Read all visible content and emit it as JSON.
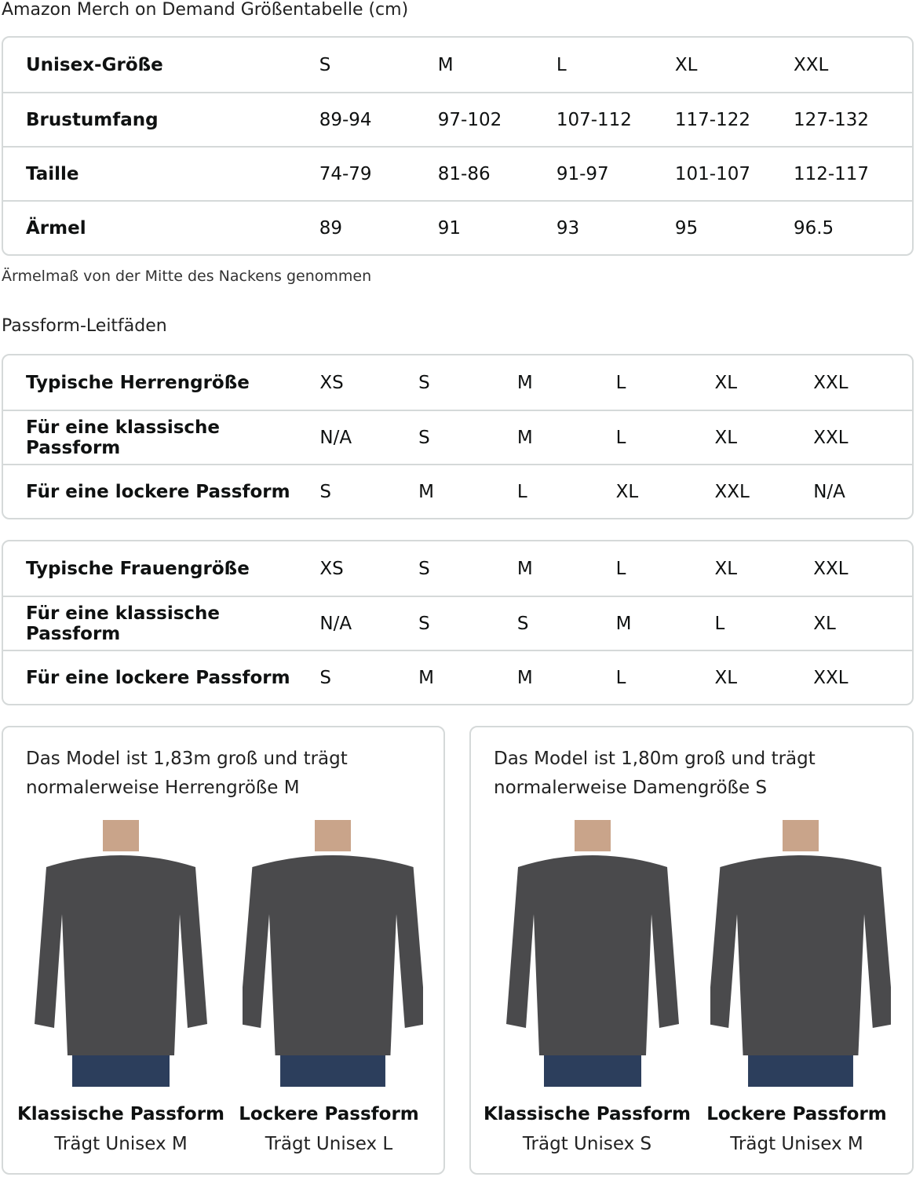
{
  "title": "Amazon Merch on Demand Größentabelle (cm)",
  "unisex": {
    "rows": [
      {
        "label": "Unisex-Größe",
        "values": [
          "S",
          "M",
          "L",
          "XL",
          "XXL"
        ]
      },
      {
        "label": "Brustumfang",
        "values": [
          "89-94",
          "97-102",
          "107-112",
          "117-122",
          "127-132"
        ]
      },
      {
        "label": "Taille",
        "values": [
          "74-79",
          "81-86",
          "91-97",
          "101-107",
          "112-117"
        ]
      },
      {
        "label": "Ärmel",
        "values": [
          "89",
          "91",
          "93",
          "95",
          "96.5"
        ]
      }
    ]
  },
  "note": "Ärmelmaß von der Mitte des Nackens genommen",
  "fit_title": "Passform-Leitfäden",
  "men": {
    "rows": [
      {
        "label": "Typische Herrengröße",
        "values": [
          "XS",
          "S",
          "M",
          "L",
          "XL",
          "XXL"
        ]
      },
      {
        "label": "Für eine klassische Passform",
        "values": [
          "N/A",
          "S",
          "M",
          "L",
          "XL",
          "XXL"
        ]
      },
      {
        "label": "Für eine lockere Passform",
        "values": [
          "S",
          "M",
          "L",
          "XL",
          "XXL",
          "N/A"
        ]
      }
    ]
  },
  "women": {
    "rows": [
      {
        "label": "Typische Frauengröße",
        "values": [
          "XS",
          "S",
          "M",
          "L",
          "XL",
          "XXL"
        ]
      },
      {
        "label": "Für eine klassische Passform",
        "values": [
          "N/A",
          "S",
          "S",
          "M",
          "L",
          "XL"
        ]
      },
      {
        "label": "Für eine lockere Passform",
        "values": [
          "S",
          "M",
          "M",
          "L",
          "XL",
          "XXL"
        ]
      }
    ]
  },
  "cards": [
    {
      "desc": "Das Model ist 1,83m groß und trägt normalerweise Herrengröße M",
      "items": [
        {
          "title": "Klassische Passform",
          "sub": "Trägt Unisex M"
        },
        {
          "title": "Lockere Passform",
          "sub": "Trägt Unisex L"
        }
      ]
    },
    {
      "desc": "Das Model ist 1,80m groß und trägt normalerweise Damengröße S",
      "items": [
        {
          "title": "Klassische Passform",
          "sub": "Trägt Unisex S"
        },
        {
          "title": "Lockere Passform",
          "sub": "Trägt Unisex M"
        }
      ]
    }
  ],
  "colors": {
    "border": "#d5d9d9",
    "sweatshirt": "#4a4a4c",
    "jeans": "#2c3e5c"
  }
}
